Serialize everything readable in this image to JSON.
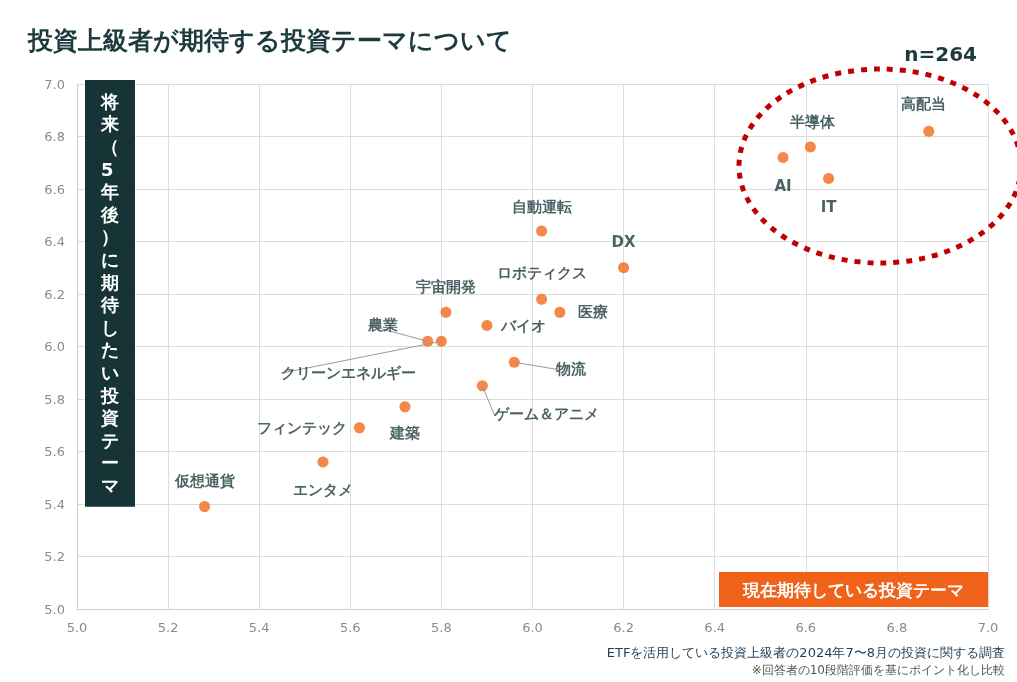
{
  "chart_data": {
    "type": "scatter",
    "title": "投資上級者が期待する投資テーマについて",
    "xlabel": "現在期待している投資テーマ",
    "ylabel": "将来（5年後）に期待したい投資テーマ",
    "x": [
      6.87,
      6.61,
      6.55,
      6.65,
      6.02,
      6.2,
      6.02,
      6.06,
      5.81,
      5.9,
      5.77,
      5.8,
      5.96,
      5.89,
      5.72,
      5.62,
      5.54,
      5.28
    ],
    "values": [
      6.82,
      6.76,
      6.72,
      6.64,
      6.44,
      6.3,
      6.18,
      6.13,
      6.13,
      6.08,
      6.02,
      6.02,
      5.94,
      5.85,
      5.77,
      5.69,
      5.56,
      5.39
    ],
    "color": "#f26a1b",
    "marker": "circle",
    "grid": true,
    "xlim": [
      5,
      7
    ],
    "ylim": [
      5,
      7
    ],
    "xticks": [
      {
        "value": 5,
        "label": "5.0"
      },
      {
        "value": 5.2,
        "label": "5.2"
      },
      {
        "value": 5.4,
        "label": "5.4"
      },
      {
        "value": 5.6,
        "label": "5.6"
      },
      {
        "value": 5.8,
        "label": "5.8"
      },
      {
        "value": 6,
        "label": "6.0"
      },
      {
        "value": 6.2,
        "label": "6.2"
      },
      {
        "value": 6.4,
        "label": "6.4"
      },
      {
        "value": 6.6,
        "label": "6.6"
      },
      {
        "value": 6.8,
        "label": "6.8"
      },
      {
        "value": 7,
        "label": "7.0"
      }
    ],
    "yticks": [
      {
        "value": 5,
        "label": "5.0"
      },
      {
        "value": 5.2,
        "label": "5.2"
      },
      {
        "value": 5.4,
        "label": "5.4"
      },
      {
        "value": 5.6,
        "label": "5.6"
      },
      {
        "value": 5.8,
        "label": "5.8"
      },
      {
        "value": 6,
        "label": "6.0"
      },
      {
        "value": 6.2,
        "label": "6.2"
      },
      {
        "value": 6.4,
        "label": "6.4"
      },
      {
        "value": 6.6,
        "label": "6.6"
      },
      {
        "value": 6.8,
        "label": "6.8"
      },
      {
        "value": 7,
        "label": "7.0"
      }
    ],
    "annotations": [
      {
        "text": "高配当",
        "x": 6.87,
        "y": 6.82
      },
      {
        "text": "半導体",
        "x": 6.61,
        "y": 6.76
      },
      {
        "text": "AI",
        "x": 6.55,
        "y": 6.72
      },
      {
        "text": "IT",
        "x": 6.65,
        "y": 6.64
      },
      {
        "text": "自動運転",
        "x": 6.02,
        "y": 6.44
      },
      {
        "text": "DX",
        "x": 6.2,
        "y": 6.3
      },
      {
        "text": "ロボティクス",
        "x": 6.02,
        "y": 6.18
      },
      {
        "text": "医療",
        "x": 6.06,
        "y": 6.13
      },
      {
        "text": "宇宙開発",
        "x": 5.81,
        "y": 6.13
      },
      {
        "text": "バイオ",
        "x": 5.9,
        "y": 6.08
      },
      {
        "text": "農業",
        "x": 5.77,
        "y": 6.02
      },
      {
        "text": "クリーンエネルギー",
        "x": 5.8,
        "y": 6.02
      },
      {
        "text": "物流",
        "x": 5.96,
        "y": 5.94
      },
      {
        "text": "ゲーム＆アニメ",
        "x": 5.89,
        "y": 5.85
      },
      {
        "text": "建築",
        "x": 5.72,
        "y": 5.77
      },
      {
        "text": "フィンテック",
        "x": 5.62,
        "y": 5.69
      },
      {
        "text": "エンタメ",
        "x": 5.54,
        "y": 5.56
      },
      {
        "text": "仮想通貨",
        "x": 5.28,
        "y": 5.39
      },
      "n=264",
      "ETFを活用している投資上級者の2024年7〜8月の投資に関する調査",
      "※回答者の10段階評価を基にポイント化し比較"
    ]
  }
}
